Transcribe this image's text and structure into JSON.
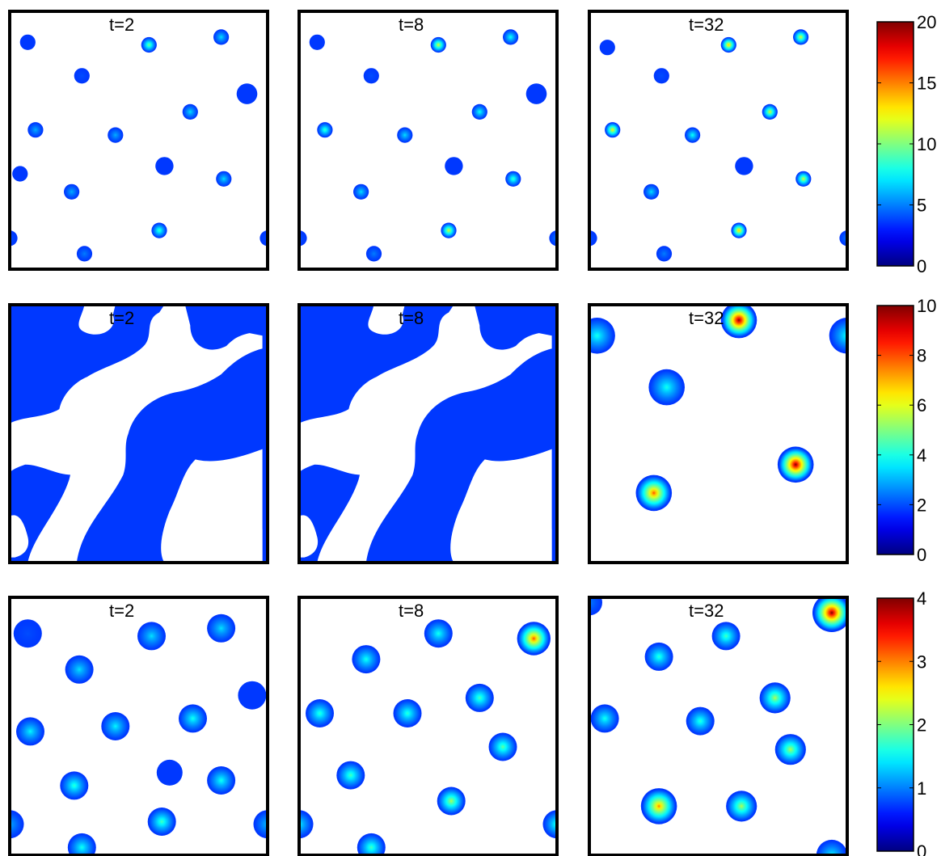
{
  "chart_data": [
    {
      "type": "heatmap",
      "row": 1,
      "colorbar": {
        "min": 0,
        "max": 20,
        "ticks": [
          "0",
          "5",
          "10",
          "15",
          "20"
        ]
      },
      "panels": [
        {
          "label": "t=2",
          "spots": [
            {
              "x": 0.07,
              "y": 0.88,
              "r": 0.03,
              "peak": 3
            },
            {
              "x": 0.54,
              "y": 0.87,
              "r": 0.03,
              "peak": 10
            },
            {
              "x": 0.82,
              "y": 0.9,
              "r": 0.03,
              "peak": 7
            },
            {
              "x": 0.28,
              "y": 0.75,
              "r": 0.03,
              "peak": 4
            },
            {
              "x": 0.92,
              "y": 0.68,
              "r": 0.04,
              "peak": 2
            },
            {
              "x": 0.7,
              "y": 0.61,
              "r": 0.03,
              "peak": 7
            },
            {
              "x": 0.1,
              "y": 0.54,
              "r": 0.03,
              "peak": 6
            },
            {
              "x": 0.41,
              "y": 0.52,
              "r": 0.03,
              "peak": 6
            },
            {
              "x": 0.04,
              "y": 0.37,
              "r": 0.03,
              "peak": 2
            },
            {
              "x": 0.6,
              "y": 0.4,
              "r": 0.035,
              "peak": 2
            },
            {
              "x": 0.83,
              "y": 0.35,
              "r": 0.03,
              "peak": 7
            },
            {
              "x": 0.24,
              "y": 0.3,
              "r": 0.03,
              "peak": 6
            },
            {
              "x": 0.58,
              "y": 0.15,
              "r": 0.03,
              "peak": 9
            },
            {
              "x": 0.0,
              "y": 0.12,
              "r": 0.03,
              "peak": 4
            },
            {
              "x": 1.0,
              "y": 0.12,
              "r": 0.03,
              "peak": 4
            },
            {
              "x": 0.29,
              "y": 0.06,
              "r": 0.03,
              "peak": 5
            }
          ]
        },
        {
          "label": "t=8",
          "spots": [
            {
              "x": 0.07,
              "y": 0.88,
              "r": 0.03,
              "peak": 3
            },
            {
              "x": 0.54,
              "y": 0.87,
              "r": 0.03,
              "peak": 12
            },
            {
              "x": 0.82,
              "y": 0.9,
              "r": 0.03,
              "peak": 8
            },
            {
              "x": 0.28,
              "y": 0.75,
              "r": 0.03,
              "peak": 4
            },
            {
              "x": 0.92,
              "y": 0.68,
              "r": 0.04,
              "peak": 2
            },
            {
              "x": 0.7,
              "y": 0.61,
              "r": 0.03,
              "peak": 8
            },
            {
              "x": 0.1,
              "y": 0.54,
              "r": 0.03,
              "peak": 9
            },
            {
              "x": 0.41,
              "y": 0.52,
              "r": 0.03,
              "peak": 7
            },
            {
              "x": 0.6,
              "y": 0.4,
              "r": 0.035,
              "peak": 2
            },
            {
              "x": 0.83,
              "y": 0.35,
              "r": 0.03,
              "peak": 9
            },
            {
              "x": 0.24,
              "y": 0.3,
              "r": 0.03,
              "peak": 7
            },
            {
              "x": 0.58,
              "y": 0.15,
              "r": 0.03,
              "peak": 12
            },
            {
              "x": 0.0,
              "y": 0.12,
              "r": 0.03,
              "peak": 4
            },
            {
              "x": 1.0,
              "y": 0.12,
              "r": 0.03,
              "peak": 5
            },
            {
              "x": 0.29,
              "y": 0.06,
              "r": 0.03,
              "peak": 5
            }
          ]
        },
        {
          "label": "t=32",
          "spots": [
            {
              "x": 0.07,
              "y": 0.86,
              "r": 0.03,
              "peak": 3
            },
            {
              "x": 0.54,
              "y": 0.87,
              "r": 0.03,
              "peak": 14
            },
            {
              "x": 0.82,
              "y": 0.9,
              "r": 0.03,
              "peak": 12
            },
            {
              "x": 0.28,
              "y": 0.75,
              "r": 0.03,
              "peak": 4
            },
            {
              "x": 0.7,
              "y": 0.61,
              "r": 0.03,
              "peak": 12
            },
            {
              "x": 0.09,
              "y": 0.54,
              "r": 0.03,
              "peak": 13
            },
            {
              "x": 0.4,
              "y": 0.52,
              "r": 0.03,
              "peak": 8
            },
            {
              "x": 0.6,
              "y": 0.4,
              "r": 0.035,
              "peak": 2
            },
            {
              "x": 0.83,
              "y": 0.35,
              "r": 0.03,
              "peak": 12
            },
            {
              "x": 0.24,
              "y": 0.3,
              "r": 0.03,
              "peak": 7
            },
            {
              "x": 0.58,
              "y": 0.15,
              "r": 0.03,
              "peak": 14
            },
            {
              "x": 0.0,
              "y": 0.12,
              "r": 0.03,
              "peak": 4
            },
            {
              "x": 1.0,
              "y": 0.12,
              "r": 0.03,
              "peak": 5
            },
            {
              "x": 0.29,
              "y": 0.06,
              "r": 0.03,
              "peak": 5
            }
          ]
        }
      ]
    },
    {
      "type": "heatmap",
      "row": 2,
      "colorbar": {
        "min": 0,
        "max": 10,
        "ticks": [
          "0",
          "2",
          "4",
          "6",
          "8",
          "10"
        ]
      },
      "panels": [
        {
          "label": "t=2",
          "pattern": "labyrinth",
          "spots": []
        },
        {
          "label": "t=8",
          "pattern": "labyrinth",
          "spots": []
        },
        {
          "label": "t=32",
          "spots": [
            {
              "x": 0.58,
              "y": 0.94,
              "r": 0.07,
              "peak": 10
            },
            {
              "x": 0.03,
              "y": 0.88,
              "r": 0.07,
              "peak": 4
            },
            {
              "x": 1.0,
              "y": 0.88,
              "r": 0.07,
              "peak": 4
            },
            {
              "x": 0.3,
              "y": 0.68,
              "r": 0.07,
              "peak": 4
            },
            {
              "x": 0.8,
              "y": 0.38,
              "r": 0.07,
              "peak": 10
            },
            {
              "x": 0.25,
              "y": 0.27,
              "r": 0.07,
              "peak": 8
            }
          ]
        }
      ]
    },
    {
      "type": "heatmap",
      "row": 3,
      "colorbar": {
        "min": 0,
        "max": 4,
        "ticks": [
          "0",
          "1",
          "2",
          "3",
          "4"
        ]
      },
      "panels": [
        {
          "label": "t=2",
          "spots": [
            {
              "x": 0.07,
              "y": 0.86,
              "r": 0.055,
              "peak": 0.8
            },
            {
              "x": 0.55,
              "y": 0.85,
              "r": 0.055,
              "peak": 1.4
            },
            {
              "x": 0.82,
              "y": 0.88,
              "r": 0.055,
              "peak": 1.4
            },
            {
              "x": 0.27,
              "y": 0.72,
              "r": 0.055,
              "peak": 1.4
            },
            {
              "x": 0.94,
              "y": 0.62,
              "r": 0.055,
              "peak": 0.6
            },
            {
              "x": 0.71,
              "y": 0.53,
              "r": 0.055,
              "peak": 1.6
            },
            {
              "x": 0.08,
              "y": 0.48,
              "r": 0.055,
              "peak": 1.5
            },
            {
              "x": 0.41,
              "y": 0.5,
              "r": 0.055,
              "peak": 1.5
            },
            {
              "x": 0.62,
              "y": 0.32,
              "r": 0.05,
              "peak": 0.5
            },
            {
              "x": 0.82,
              "y": 0.29,
              "r": 0.055,
              "peak": 1.6
            },
            {
              "x": 0.25,
              "y": 0.27,
              "r": 0.055,
              "peak": 1.7
            },
            {
              "x": 0.59,
              "y": 0.13,
              "r": 0.055,
              "peak": 1.8
            },
            {
              "x": 0.0,
              "y": 0.12,
              "r": 0.055,
              "peak": 1.2
            },
            {
              "x": 1.0,
              "y": 0.12,
              "r": 0.055,
              "peak": 1.3
            },
            {
              "x": 0.28,
              "y": 0.03,
              "r": 0.055,
              "peak": 1.6
            }
          ]
        },
        {
          "label": "t=8",
          "spots": [
            {
              "x": 0.54,
              "y": 0.86,
              "r": 0.055,
              "peak": 1.6
            },
            {
              "x": 0.91,
              "y": 0.84,
              "r": 0.065,
              "peak": 3.2
            },
            {
              "x": 0.26,
              "y": 0.76,
              "r": 0.055,
              "peak": 1.6
            },
            {
              "x": 0.7,
              "y": 0.61,
              "r": 0.055,
              "peak": 1.8
            },
            {
              "x": 0.08,
              "y": 0.55,
              "r": 0.055,
              "peak": 1.7
            },
            {
              "x": 0.42,
              "y": 0.55,
              "r": 0.055,
              "peak": 1.7
            },
            {
              "x": 0.79,
              "y": 0.42,
              "r": 0.055,
              "peak": 1.9
            },
            {
              "x": 0.2,
              "y": 0.31,
              "r": 0.055,
              "peak": 1.8
            },
            {
              "x": 0.59,
              "y": 0.21,
              "r": 0.055,
              "peak": 2.2
            },
            {
              "x": 0.0,
              "y": 0.12,
              "r": 0.055,
              "peak": 1.5
            },
            {
              "x": 1.0,
              "y": 0.12,
              "r": 0.055,
              "peak": 1.7
            },
            {
              "x": 0.28,
              "y": 0.03,
              "r": 0.055,
              "peak": 1.8
            }
          ]
        },
        {
          "label": "t=32",
          "spots": [
            {
              "x": 0.53,
              "y": 0.85,
              "r": 0.055,
              "peak": 1.8
            },
            {
              "x": 0.94,
              "y": 0.94,
              "r": 0.075,
              "peak": 4
            },
            {
              "x": 0.27,
              "y": 0.77,
              "r": 0.055,
              "peak": 1.7
            },
            {
              "x": 0.72,
              "y": 0.61,
              "r": 0.06,
              "peak": 2.2
            },
            {
              "x": 0.06,
              "y": 0.53,
              "r": 0.055,
              "peak": 1.6
            },
            {
              "x": 0.43,
              "y": 0.52,
              "r": 0.055,
              "peak": 1.7
            },
            {
              "x": 0.78,
              "y": 0.41,
              "r": 0.06,
              "peak": 2.2
            },
            {
              "x": 0.27,
              "y": 0.19,
              "r": 0.07,
              "peak": 3.0
            },
            {
              "x": 0.59,
              "y": 0.19,
              "r": 0.06,
              "peak": 2.2
            },
            {
              "x": 0.0,
              "y": 0.98,
              "r": 0.05,
              "peak": 1.0
            },
            {
              "x": 0.94,
              "y": 0.0,
              "r": 0.06,
              "peak": 1.5
            }
          ]
        }
      ]
    }
  ]
}
